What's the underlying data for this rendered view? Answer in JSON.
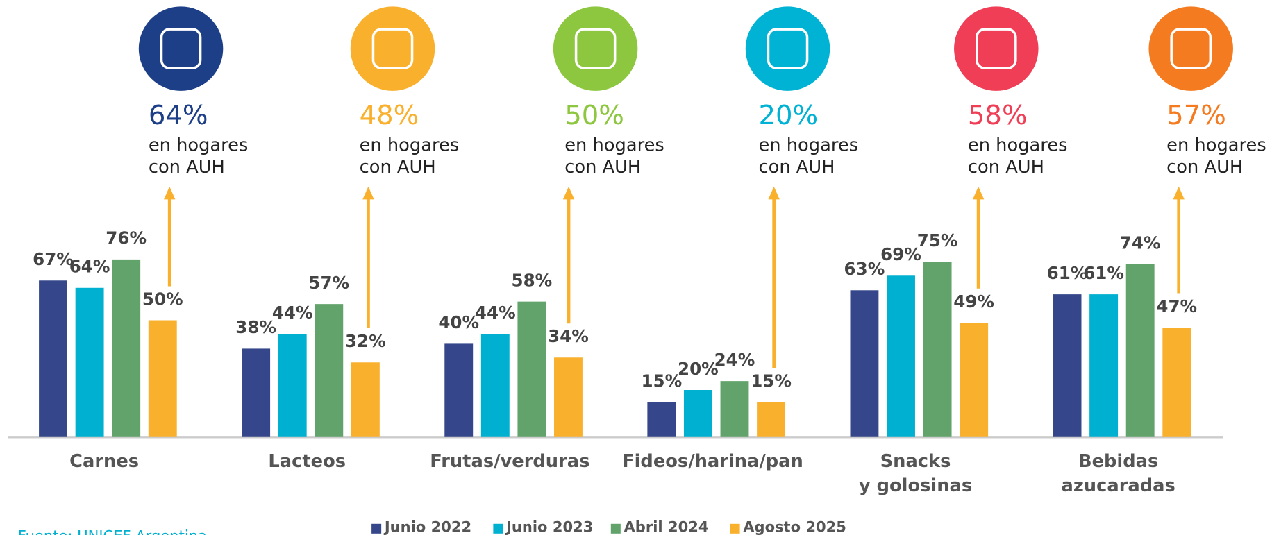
{
  "chart_data": {
    "type": "bar",
    "categories": [
      "Carnes",
      "Lacteos",
      "Frutas/verduras",
      "Fideos/harina/pan",
      "Snacks\ny golosinas",
      "Bebidas\nazucaradas"
    ],
    "series": [
      {
        "name": "Junio 2022",
        "color": "#35478a",
        "values": [
          67,
          38,
          40,
          15,
          63,
          61
        ],
        "value_labels": [
          "67%",
          "38%",
          "40%",
          "15%",
          "63%",
          "61%"
        ]
      },
      {
        "name": "Junio 2023",
        "color": "#00b0d0",
        "values": [
          64,
          44,
          44,
          20,
          69,
          61
        ],
        "value_labels": [
          "64%",
          "44%",
          "44%",
          "20%",
          "69%",
          "61%"
        ]
      },
      {
        "name": "Abril 2024",
        "color": "#62a36b",
        "values": [
          76,
          57,
          58,
          24,
          75,
          74
        ],
        "value_labels": [
          "76%",
          "57%",
          "58%",
          "24%",
          "75%",
          "74%"
        ]
      },
      {
        "name": "Agosto 2025",
        "color": "#f9b02d",
        "values": [
          50,
          32,
          34,
          15,
          49,
          47
        ],
        "value_labels": [
          "50%",
          "32%",
          "34%",
          "15%",
          "49%",
          "47%"
        ]
      }
    ],
    "annotations": [
      {
        "value": 64,
        "label": "64%",
        "text": [
          "en hogares",
          "con AUH"
        ],
        "color": "#1d3f87"
      },
      {
        "value": 48,
        "label": "48%",
        "text": [
          "en hogares",
          "con AUH"
        ],
        "color": "#f9b02d"
      },
      {
        "value": 50,
        "label": "50%",
        "text": [
          "en hogares",
          "con AUH"
        ],
        "color": "#8dc63f"
      },
      {
        "value": 20,
        "label": "20%",
        "text": [
          "en hogares",
          "con AUH"
        ],
        "color": "#00b2d4"
      },
      {
        "value": 58,
        "label": "58%",
        "text": [
          "en hogares",
          "con AUH"
        ],
        "color": "#ef3e56"
      },
      {
        "value": 57,
        "label": "57%",
        "text": [
          "en hogares",
          "con AUH"
        ],
        "color": "#f47b20"
      }
    ],
    "source": "Fuente: UNICEF Argentina",
    "legend": "bottom"
  }
}
